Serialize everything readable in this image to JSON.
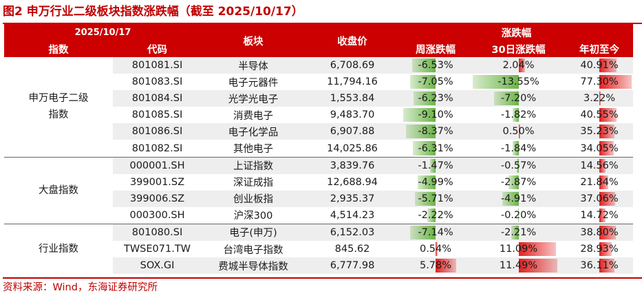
{
  "title": "图2  申万行业二级板块指数涨跌幅（截至 2025/10/17）",
  "header": {
    "date": "2025/10/17",
    "index_label": "指数",
    "code_label": "代码",
    "sector_label": "板块",
    "close_label": "收盘价",
    "change_group_label": "涨跌幅",
    "weekly_label": "周涨跌幅",
    "d30_label": "30日涨跌幅",
    "ytd_label": "年初至今"
  },
  "groups": [
    {
      "name": "申万电子二级\n指数",
      "rows": [
        {
          "code": "801081.SI",
          "sector": "半导体",
          "close": "6,708.69",
          "weekly": "-6.53%",
          "d30": "2.04%",
          "ytd": "40.91%",
          "weekly_num": -6.53,
          "d30_num": 2.04,
          "ytd_num": 40.91
        },
        {
          "code": "801083.SI",
          "sector": "电子元器件",
          "close": "11,794.16",
          "weekly": "-7.05%",
          "d30": "-13.55%",
          "ytd": "77.30%",
          "weekly_num": -7.05,
          "d30_num": -13.55,
          "ytd_num": 77.3
        },
        {
          "code": "801084.SI",
          "sector": "光学光电子",
          "close": "1,553.84",
          "weekly": "-6.23%",
          "d30": "-7.20%",
          "ytd": "3.22%",
          "weekly_num": -6.23,
          "d30_num": -7.2,
          "ytd_num": 3.22
        },
        {
          "code": "801085.SI",
          "sector": "消费电子",
          "close": "9,483.70",
          "weekly": "-9.10%",
          "d30": "-1.82%",
          "ytd": "40.55%",
          "weekly_num": -9.1,
          "d30_num": -1.82,
          "ytd_num": 40.55
        },
        {
          "code": "801086.SI",
          "sector": "电子化学品",
          "close": "6,907.88",
          "weekly": "-8.37%",
          "d30": "0.50%",
          "ytd": "35.23%",
          "weekly_num": -8.37,
          "d30_num": 0.5,
          "ytd_num": 35.23
        },
        {
          "code": "801082.SI",
          "sector": "其他电子",
          "close": "14,025.86",
          "weekly": "-6.31%",
          "d30": "-1.84%",
          "ytd": "34.05%",
          "weekly_num": -6.31,
          "d30_num": -1.84,
          "ytd_num": 34.05
        }
      ]
    },
    {
      "name": "大盘指数",
      "rows": [
        {
          "code": "000001.SH",
          "sector": "上证指数",
          "close": "3,839.76",
          "weekly": "-1.47%",
          "d30": "-0.57%",
          "ytd": "14.56%",
          "weekly_num": -1.47,
          "d30_num": -0.57,
          "ytd_num": 14.56
        },
        {
          "code": "399001.SZ",
          "sector": "深证成指",
          "close": "12,688.94",
          "weekly": "-4.99%",
          "d30": "-2.87%",
          "ytd": "21.84%",
          "weekly_num": -4.99,
          "d30_num": -2.87,
          "ytd_num": 21.84
        },
        {
          "code": "399006.SZ",
          "sector": "创业板指",
          "close": "2,935.37",
          "weekly": "-5.71%",
          "d30": "-4.91%",
          "ytd": "37.06%",
          "weekly_num": -5.71,
          "d30_num": -4.91,
          "ytd_num": 37.06
        },
        {
          "code": "000300.SH",
          "sector": "沪深300",
          "close": "4,514.23",
          "weekly": "-2.22%",
          "d30": "-0.20%",
          "ytd": "14.72%",
          "weekly_num": -2.22,
          "d30_num": -0.2,
          "ytd_num": 14.72
        }
      ]
    },
    {
      "name": "行业指数",
      "rows": [
        {
          "code": "801080.SI",
          "sector": "电子(申万)",
          "close": "6,152.03",
          "weekly": "-7.14%",
          "d30": "-2.21%",
          "ytd": "38.80%",
          "weekly_num": -7.14,
          "d30_num": -2.21,
          "ytd_num": 38.8
        },
        {
          "code": "TWSE071.TW",
          "sector": "台湾电子指数",
          "close": "845.62",
          "weekly": "0.54%",
          "d30": "11.09%",
          "ytd": "28.93%",
          "weekly_num": 0.54,
          "d30_num": 11.09,
          "ytd_num": 28.93
        },
        {
          "code": "SOX.GI",
          "sector": "费城半导体指数",
          "close": "6,777.98",
          "weekly": "5.78%",
          "d30": "11.49%",
          "ytd": "36.11%",
          "weekly_num": 5.78,
          "d30_num": 11.49,
          "ytd_num": 36.11
        }
      ]
    }
  ],
  "source": "资料来源：Wind，东海证券研究所",
  "colors": {
    "accent": "#c00000",
    "header_bg": "#cc0000",
    "negative_bar": "#63b03c",
    "positive_bar": "#e11414",
    "stripe": "#eeeeee"
  }
}
